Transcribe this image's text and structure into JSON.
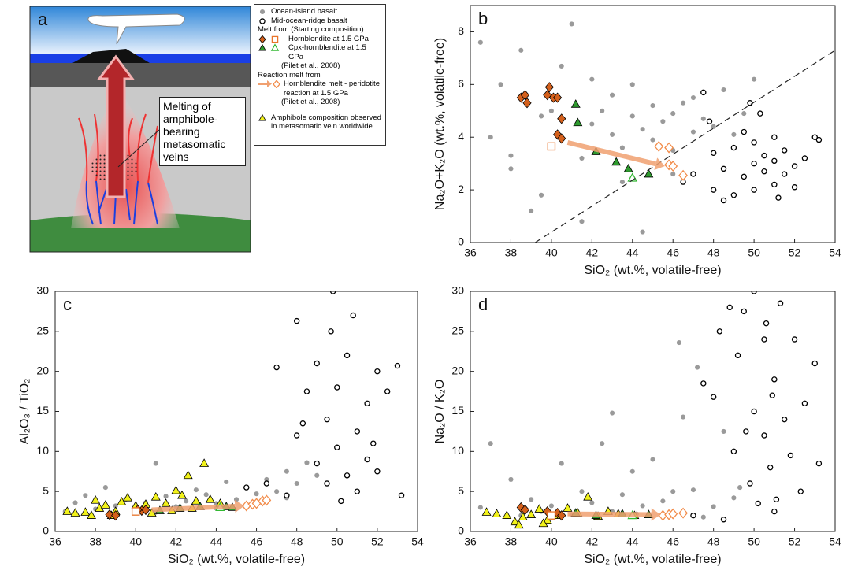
{
  "diagram": {
    "panel": "a",
    "callout": "Melting of amphibole-bearing metasomatic veins"
  },
  "legend": {
    "melt_header": "Melt from (Starting composition):",
    "citation": "(Pilet et al., 2008)",
    "reaction_header": "Reaction melt from"
  },
  "chart_data": [
    {
      "type": "scatter",
      "panel": "b",
      "xlabel": "SiO₂ (wt.%, volatile-free)",
      "ylabel": "Na₂O+K₂O (wt.%, volatile-free)",
      "xlim": [
        36,
        54
      ],
      "ylim": [
        0,
        9
      ],
      "xticks": [
        36,
        38,
        40,
        42,
        44,
        46,
        48,
        50,
        52,
        54
      ],
      "yticks": [
        0,
        2,
        4,
        6,
        8
      ],
      "series": [
        {
          "name": "Ocean-island basalt",
          "marker": "circle",
          "color": "#9a9a9a",
          "filled": true,
          "x": [
            36.5,
            37,
            37.5,
            38,
            38.5,
            39,
            39.5,
            40,
            40.5,
            41,
            41.5,
            42,
            42,
            42.5,
            43,
            43,
            43.5,
            44,
            44,
            44.5,
            45,
            45,
            45.5,
            46,
            46,
            46.5,
            47,
            47,
            47.5,
            48,
            48.5,
            49,
            49.5,
            50,
            41.5,
            43.5,
            38,
            46,
            44.5,
            39.5
          ],
          "values": [
            7.6,
            4.0,
            6.0,
            3.3,
            7.3,
            1.2,
            4.8,
            5.0,
            6.7,
            8.3,
            3.2,
            6.2,
            4.5,
            5.0,
            4.1,
            5.6,
            3.6,
            4.8,
            6.0,
            4.3,
            5.2,
            3.9,
            4.6,
            4.9,
            3.5,
            5.3,
            4.2,
            5.5,
            4.7,
            4.4,
            5.8,
            4.1,
            4.9,
            6.2,
            0.8,
            2.3,
            2.8,
            2.6,
            0.4,
            1.8
          ]
        },
        {
          "name": "Mid-ocean-ridge basalt",
          "marker": "circle",
          "color": "#000000",
          "filled": false,
          "x": [
            46.5,
            47,
            47.5,
            48,
            48,
            48.5,
            49,
            49,
            49.5,
            49.5,
            50,
            50,
            50,
            50.5,
            50.5,
            51,
            51,
            51,
            51.5,
            51.5,
            52,
            52,
            52.5,
            53,
            53.2,
            48.5,
            49.8,
            50.3,
            51.2,
            47.8
          ],
          "values": [
            2.3,
            2.6,
            5.7,
            2.0,
            3.4,
            2.8,
            1.8,
            3.6,
            2.5,
            4.2,
            3.0,
            2.0,
            3.8,
            2.7,
            3.3,
            2.2,
            3.1,
            4.0,
            2.6,
            3.5,
            2.9,
            2.1,
            3.2,
            4.0,
            3.9,
            1.6,
            5.3,
            4.9,
            1.7,
            4.6
          ]
        },
        {
          "name": "Hornblendite at 1.5 GPa",
          "marker": "diamond",
          "color": "#d4601c",
          "filled": true,
          "x": [
            38.5,
            38.8,
            38.7,
            39.8,
            39.9,
            40.1,
            40.3,
            40.5,
            40.3,
            40.5
          ],
          "values": [
            5.5,
            5.3,
            5.6,
            5.6,
            5.9,
            5.5,
            5.5,
            4.7,
            4.1,
            3.95
          ]
        },
        {
          "marker": "square",
          "color": "#e8742a",
          "filled": false,
          "x": [
            40.0
          ],
          "values": [
            3.65
          ]
        },
        {
          "name": "Cpx-hornblendite at 1.5 GPa",
          "marker": "triangle",
          "color": "#2e9a2e",
          "filled": true,
          "x": [
            41.2,
            41.3,
            42.2,
            43.2,
            43.8,
            44.8
          ],
          "values": [
            5.25,
            4.55,
            3.45,
            3.05,
            2.8,
            2.6
          ]
        },
        {
          "marker": "triangle",
          "color": "#33b833",
          "filled": false,
          "x": [
            44.0
          ],
          "values": [
            2.45
          ]
        },
        {
          "name": "Hornblendite melt - peridotite reaction at 1.5 GPa",
          "marker": "diamond",
          "color": "#f28c4a",
          "filled": false,
          "x": [
            45.3,
            45.8,
            45.8,
            46.0,
            46.5
          ],
          "values": [
            3.65,
            3.6,
            2.95,
            2.9,
            2.55
          ]
        }
      ],
      "reference_line": {
        "x": [
          39.2,
          54
        ],
        "y": [
          0,
          7.3
        ]
      },
      "arrow": {
        "x": [
          40.8,
          45.6
        ],
        "y": [
          3.8,
          2.9
        ]
      }
    },
    {
      "type": "scatter",
      "panel": "c",
      "xlabel": "SiO₂ (wt.%, volatile-free)",
      "ylabel": "Al₂O₃ / TiO₂",
      "xlim": [
        36,
        54
      ],
      "ylim": [
        0,
        30
      ],
      "xticks": [
        36,
        38,
        40,
        42,
        44,
        46,
        48,
        50,
        52,
        54
      ],
      "yticks": [
        0,
        5,
        10,
        15,
        20,
        25,
        30
      ],
      "series": [
        {
          "marker": "circle",
          "color": "#9a9a9a",
          "filled": true,
          "x": [
            36.5,
            37,
            37.5,
            38,
            38.5,
            39,
            39.5,
            40,
            40.5,
            41,
            41.5,
            42,
            42.5,
            43,
            43.5,
            44,
            44.5,
            45,
            45.5,
            46,
            46.5,
            47,
            47.5,
            48,
            48.5,
            49,
            41,
            44,
            46,
            47.5
          ],
          "values": [
            2.5,
            3.6,
            4.5,
            2.8,
            5.5,
            3.2,
            4.0,
            2.7,
            3.6,
            8.5,
            4.4,
            3.1,
            3.8,
            5.2,
            4.6,
            3.5,
            6.2,
            4.0,
            5.5,
            4.7,
            6.5,
            5.0,
            7.5,
            6.0,
            8.6,
            7.0,
            2.4,
            2.9,
            3.3,
            4.2
          ]
        },
        {
          "marker": "circle",
          "color": "#000000",
          "filled": false,
          "x": [
            45.5,
            46.5,
            47,
            47.5,
            48,
            48,
            48.5,
            49,
            49,
            49.5,
            49.5,
            49.8,
            50,
            50,
            50.5,
            50.5,
            51,
            51,
            51.5,
            51.5,
            52,
            52,
            52.5,
            53,
            53.2,
            49.7,
            48.3,
            50.8,
            51.8,
            50.2
          ],
          "values": [
            5.5,
            6.0,
            20.5,
            4.5,
            26.3,
            12.0,
            17.5,
            8.5,
            21.0,
            14.0,
            6.0,
            30.0,
            10.5,
            18.0,
            7.0,
            22.0,
            12.5,
            5.0,
            16.0,
            9.0,
            20.0,
            7.5,
            17.5,
            20.7,
            4.5,
            25.0,
            13.5,
            27.0,
            11.0,
            3.8
          ]
        },
        {
          "name": "Amphibole composition observed in metasomatic vein worldwide",
          "marker": "triangle",
          "color": "#f2f21a",
          "filled": true,
          "x": [
            36.6,
            37,
            37.5,
            38,
            38.2,
            38.5,
            39,
            39.3,
            39.6,
            40,
            40.5,
            41,
            41.5,
            42,
            42.3,
            42.6,
            43,
            43.4,
            43.7,
            44.2,
            38.8,
            40.8,
            41.8,
            42.8,
            37.8
          ],
          "values": [
            2.5,
            2.3,
            2.4,
            3.9,
            2.9,
            3.3,
            2.5,
            3.7,
            4.2,
            3.2,
            3.4,
            4.3,
            3.5,
            5.1,
            4.5,
            7.0,
            3.8,
            8.5,
            4.0,
            3.5,
            2.0,
            2.3,
            2.6,
            2.9,
            2.0
          ]
        },
        {
          "marker": "diamond",
          "color": "#d4601c",
          "filled": true,
          "x": [
            38.7,
            39.0,
            40.3,
            40.5,
            40.1
          ],
          "values": [
            2.1,
            2.0,
            2.6,
            2.7,
            2.7
          ]
        },
        {
          "marker": "square",
          "color": "#e8742a",
          "filled": false,
          "x": [
            40.0
          ],
          "values": [
            2.5
          ]
        },
        {
          "marker": "triangle",
          "color": "#2e9a2e",
          "filled": true,
          "x": [
            41.2,
            42.2,
            43.2,
            44.5,
            44.8
          ],
          "values": [
            2.6,
            2.9,
            3.1,
            3.1,
            3.0
          ]
        },
        {
          "marker": "triangle",
          "color": "#33b833",
          "filled": false,
          "x": [
            44.2
          ],
          "values": [
            3.0
          ]
        },
        {
          "marker": "diamond",
          "color": "#f28c4a",
          "filled": false,
          "x": [
            45.5,
            45.8,
            46.0,
            46.3,
            46.5
          ],
          "values": [
            3.2,
            3.4,
            3.5,
            3.8,
            3.9
          ]
        }
      ],
      "arrow": {
        "x": [
          40.8,
          45.4
        ],
        "y": [
          2.7,
          3.2
        ]
      }
    },
    {
      "type": "scatter",
      "panel": "d",
      "xlabel": "SiO₂ (wt.%, volatile-free)",
      "ylabel": "Na₂O / K₂O",
      "xlim": [
        36,
        54
      ],
      "ylim": [
        0,
        30
      ],
      "xticks": [
        36,
        38,
        40,
        42,
        44,
        46,
        48,
        50,
        52,
        54
      ],
      "yticks": [
        0,
        5,
        10,
        15,
        20,
        25,
        30
      ],
      "series": [
        {
          "marker": "circle",
          "color": "#9a9a9a",
          "filled": true,
          "x": [
            36.5,
            37,
            38,
            38.5,
            39,
            39.5,
            40,
            40.5,
            41,
            41.5,
            42,
            42.5,
            43,
            43.5,
            44,
            44.5,
            45,
            45.5,
            46,
            46.3,
            46.5,
            47,
            47.5,
            48,
            48.5,
            49,
            49.3,
            43,
            44.2,
            47.2
          ],
          "values": [
            3.0,
            11.0,
            6.5,
            2.0,
            4.0,
            2.5,
            3.2,
            8.5,
            2.1,
            5.0,
            3.6,
            11.0,
            14.8,
            4.6,
            7.5,
            3.2,
            9.0,
            3.8,
            5.0,
            23.6,
            14.3,
            5.2,
            1.8,
            3.1,
            12.5,
            4.2,
            5.5,
            2.5,
            2.2,
            20.5
          ]
        },
        {
          "marker": "circle",
          "color": "#000000",
          "filled": false,
          "x": [
            47,
            47.5,
            48,
            48.3,
            48.8,
            49,
            49.2,
            49.5,
            49.8,
            50,
            50,
            50.2,
            50.5,
            50.5,
            50.8,
            51,
            51,
            51.3,
            51.5,
            51.8,
            52,
            52.3,
            52.5,
            53,
            53.2,
            49.6,
            50.6,
            51.1,
            48.5,
            50.9
          ],
          "values": [
            2.0,
            18.5,
            16.8,
            25.0,
            28.0,
            10.0,
            22.0,
            27.5,
            6.0,
            15.0,
            30.0,
            3.5,
            12.0,
            24.0,
            8.0,
            19.0,
            2.5,
            28.5,
            14.0,
            9.5,
            24.0,
            5.0,
            16.0,
            21.0,
            8.5,
            12.5,
            26.0,
            4.0,
            1.5,
            17.0
          ]
        },
        {
          "marker": "triangle",
          "color": "#f2f21a",
          "filled": true,
          "x": [
            36.8,
            37.3,
            37.8,
            38.2,
            38.6,
            39,
            39.4,
            39.8,
            40.3,
            40.8,
            41.3,
            41.8,
            42.3,
            42.8,
            43.3,
            44.1,
            38.4,
            39.6
          ],
          "values": [
            2.4,
            2.2,
            2.0,
            1.2,
            1.8,
            2.1,
            2.8,
            1.4,
            2.0,
            2.9,
            2.3,
            4.3,
            1.9,
            2.5,
            2.2,
            2.0,
            0.8,
            1.0
          ]
        },
        {
          "marker": "diamond",
          "color": "#d4601c",
          "filled": true,
          "x": [
            38.5,
            38.7,
            39.8,
            40.3,
            40.5
          ],
          "values": [
            3.0,
            2.7,
            2.5,
            2.3,
            2.0
          ]
        },
        {
          "marker": "square",
          "color": "#e8742a",
          "filled": false,
          "x": [
            40.0
          ],
          "values": [
            2.0
          ]
        },
        {
          "marker": "triangle",
          "color": "#2e9a2e",
          "filled": true,
          "x": [
            41.2,
            42.2,
            43.5,
            44.8
          ],
          "values": [
            2.3,
            2.0,
            2.2,
            2.1
          ]
        },
        {
          "marker": "triangle",
          "color": "#33b833",
          "filled": false,
          "x": [
            44.0
          ],
          "values": [
            2.0
          ]
        },
        {
          "marker": "diamond",
          "color": "#f28c4a",
          "filled": false,
          "x": [
            45.5,
            45.8,
            46.0,
            46.5
          ],
          "values": [
            2.0,
            2.1,
            2.2,
            2.3
          ]
        }
      ],
      "arrow": {
        "x": [
          40.8,
          45.4
        ],
        "y": [
          2.2,
          2.1
        ]
      }
    }
  ]
}
